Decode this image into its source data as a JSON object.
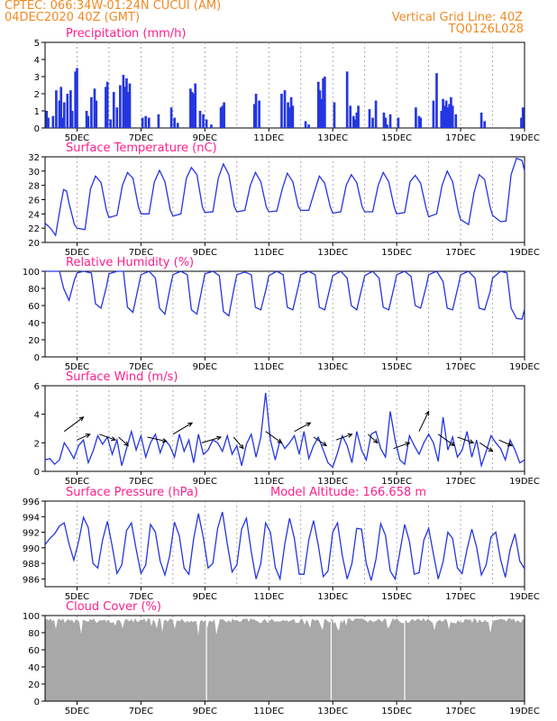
{
  "header": {
    "line1_left": "CPTEC:   066:34W-01:24N   CUCUI (AM)",
    "line2_left": "04DEC2020 40Z (GMT)",
    "grid_note": "Vertical Grid Line: 40Z",
    "code": "TQ0126L028"
  },
  "colors": {
    "header": "#f08a24",
    "title": "#ff1e8c",
    "series": "#2436e0",
    "cloud": "#a8a8a8",
    "arrow": "#000000",
    "grid": "#999999"
  },
  "x_axis": {
    "days": [
      4,
      19
    ],
    "labels": [
      "5DEC",
      "7DEC",
      "9DEC",
      "11DEC",
      "13DEC",
      "15DEC",
      "17DEC",
      "19DEC"
    ],
    "label_days": [
      5,
      7,
      9,
      11,
      13,
      15,
      17,
      19
    ]
  },
  "chart_data": [
    {
      "type": "bar",
      "title": "Precipitation (mm/h)",
      "ylim": [
        0,
        5
      ],
      "yticks": [
        0,
        1,
        2,
        3,
        4,
        5
      ],
      "x": [
        4.05,
        4.1,
        4.25,
        4.35,
        4.45,
        4.5,
        4.55,
        4.6,
        4.7,
        4.8,
        4.85,
        4.95,
        5.0,
        5.3,
        5.35,
        5.45,
        5.55,
        5.6,
        5.9,
        5.95,
        6.05,
        6.15,
        6.25,
        6.35,
        6.45,
        6.5,
        6.55,
        6.6,
        6.65,
        7.05,
        7.15,
        7.25,
        7.55,
        7.95,
        8.05,
        8.15,
        8.55,
        8.6,
        8.65,
        8.7,
        8.85,
        8.95,
        9.05,
        9.2,
        9.5,
        9.55,
        9.6,
        10.55,
        10.6,
        10.7,
        11.4,
        11.5,
        11.6,
        11.65,
        11.7,
        11.75,
        12.15,
        12.25,
        12.55,
        12.6,
        12.65,
        12.7,
        12.75,
        13.05,
        13.45,
        13.55,
        13.65,
        13.7,
        13.75,
        13.8,
        14.15,
        14.25,
        14.35,
        14.6,
        14.65,
        14.7,
        14.8,
        15.05,
        15.6,
        15.7,
        15.75,
        16.15,
        16.25,
        16.4,
        16.45,
        16.5,
        16.55,
        16.6,
        16.65,
        16.7,
        16.75,
        16.85,
        17.65,
        17.75,
        18.9,
        18.95
      ],
      "values": [
        1.0,
        0.6,
        0.7,
        2.2,
        1.6,
        2.4,
        0.6,
        1.5,
        2.0,
        2.2,
        1.0,
        3.3,
        3.5,
        1.0,
        0.7,
        1.8,
        2.3,
        1.6,
        2.4,
        2.7,
        0.5,
        2.1,
        1.2,
        2.5,
        3.1,
        2.4,
        2.9,
        2.1,
        2.6,
        0.6,
        0.7,
        0.6,
        0.8,
        1.2,
        0.6,
        0.3,
        2.3,
        2.1,
        2.0,
        2.6,
        1.0,
        0.8,
        0.5,
        0.2,
        1.2,
        1.3,
        1.5,
        1.4,
        2.0,
        1.6,
        2.0,
        2.2,
        1.5,
        1.2,
        1.8,
        1.3,
        0.4,
        0.2,
        2.7,
        2.2,
        1.7,
        2.9,
        3.0,
        1.5,
        3.3,
        1.3,
        0.7,
        0.5,
        0.9,
        1.3,
        1.1,
        0.6,
        1.6,
        0.9,
        0.6,
        0.2,
        0.8,
        0.6,
        1.2,
        0.7,
        0.6,
        1.6,
        3.2,
        1.0,
        1.7,
        1.3,
        1.6,
        1.2,
        1.4,
        1.8,
        1.3,
        0.8,
        0.9,
        0.4,
        0.6,
        1.2
      ]
    },
    {
      "type": "line",
      "title": "Surface Temperature (nC)",
      "ylim": [
        20,
        32
      ],
      "yticks": [
        20,
        22,
        24,
        26,
        28,
        30,
        32
      ],
      "x": [
        4.0,
        4.17,
        4.33,
        4.5,
        4.58,
        4.67,
        4.75,
        4.92,
        5.0,
        5.25,
        5.42,
        5.58,
        5.75,
        5.92,
        6.0,
        6.25,
        6.42,
        6.58,
        6.75,
        6.92,
        7.0,
        7.25,
        7.42,
        7.58,
        7.75,
        7.92,
        8.0,
        8.25,
        8.42,
        8.58,
        8.75,
        8.92,
        9.0,
        9.25,
        9.42,
        9.58,
        9.75,
        9.92,
        10.0,
        10.25,
        10.42,
        10.58,
        10.75,
        10.92,
        11.0,
        11.25,
        11.42,
        11.58,
        11.75,
        11.92,
        12.0,
        12.25,
        12.42,
        12.58,
        12.75,
        12.92,
        13.0,
        13.25,
        13.42,
        13.58,
        13.75,
        13.92,
        14.0,
        14.25,
        14.42,
        14.58,
        14.75,
        14.92,
        15.0,
        15.25,
        15.42,
        15.58,
        15.75,
        15.92,
        16.0,
        16.25,
        16.42,
        16.58,
        16.75,
        16.92,
        17.0,
        17.25,
        17.42,
        17.58,
        17.75,
        17.92,
        18.0,
        18.25,
        18.42,
        18.58,
        18.75,
        18.92,
        19.0
      ],
      "values": [
        22.7,
        22.0,
        21.0,
        25.5,
        27.4,
        27.2,
        25.5,
        22.5,
        22.0,
        21.8,
        27.5,
        29.3,
        28.4,
        24.5,
        23.5,
        23.8,
        28.0,
        29.8,
        29.0,
        25.0,
        24.0,
        24.0,
        28.5,
        30.1,
        28.5,
        24.5,
        23.7,
        24.0,
        29.0,
        30.5,
        29.5,
        25.0,
        24.2,
        24.3,
        29.0,
        31.0,
        29.5,
        25.0,
        24.3,
        24.5,
        28.0,
        29.8,
        28.5,
        25.0,
        24.3,
        24.4,
        27.5,
        29.7,
        28.5,
        25.0,
        24.5,
        24.5,
        27.0,
        29.3,
        28.3,
        25.0,
        24.1,
        24.3,
        28.0,
        29.5,
        28.4,
        25.0,
        24.3,
        24.3,
        28.0,
        29.8,
        28.5,
        25.0,
        24.0,
        24.2,
        28.5,
        29.4,
        28.3,
        24.8,
        23.6,
        24.0,
        28.0,
        30.0,
        28.5,
        24.5,
        23.2,
        22.5,
        27.0,
        29.5,
        28.8,
        25.0,
        23.8,
        22.9,
        23.0,
        29.5,
        31.8,
        31.5,
        30.0
      ]
    },
    {
      "type": "line",
      "title": "Relative Humidity (%)",
      "ylim": [
        0,
        100
      ],
      "yticks": [
        0,
        20,
        40,
        60,
        80,
        100
      ],
      "x": [
        4.0,
        4.25,
        4.45,
        4.58,
        4.75,
        4.92,
        5.0,
        5.2,
        5.45,
        5.58,
        5.75,
        5.92,
        6.0,
        6.25,
        6.45,
        6.58,
        6.75,
        6.92,
        7.0,
        7.25,
        7.45,
        7.58,
        7.75,
        7.92,
        8.0,
        8.25,
        8.45,
        8.58,
        8.75,
        8.92,
        9.0,
        9.25,
        9.45,
        9.58,
        9.75,
        9.92,
        10.0,
        10.25,
        10.45,
        10.58,
        10.75,
        10.92,
        11.0,
        11.25,
        11.45,
        11.58,
        11.75,
        11.92,
        12.0,
        12.25,
        12.45,
        12.58,
        12.75,
        12.92,
        13.0,
        13.25,
        13.45,
        13.58,
        13.75,
        13.92,
        14.0,
        14.25,
        14.45,
        14.58,
        14.75,
        14.92,
        15.0,
        15.25,
        15.45,
        15.58,
        15.75,
        15.92,
        16.0,
        16.25,
        16.45,
        16.58,
        16.75,
        16.92,
        17.0,
        17.25,
        17.45,
        17.58,
        17.75,
        17.92,
        18.0,
        18.25,
        18.45,
        18.58,
        18.75,
        18.92,
        19.0
      ],
      "values": [
        100,
        100,
        100,
        80,
        66,
        90,
        98,
        100,
        98,
        62,
        57,
        82,
        97,
        100,
        100,
        58,
        52,
        82,
        96,
        100,
        92,
        57,
        50,
        82,
        96,
        100,
        96,
        55,
        50,
        82,
        97,
        100,
        95,
        53,
        48,
        82,
        96,
        99,
        96,
        58,
        55,
        80,
        95,
        100,
        96,
        58,
        55,
        82,
        96,
        100,
        96,
        58,
        55,
        82,
        95,
        100,
        92,
        60,
        55,
        82,
        95,
        100,
        92,
        58,
        55,
        82,
        96,
        100,
        94,
        60,
        57,
        82,
        96,
        100,
        88,
        57,
        55,
        82,
        96,
        100,
        92,
        57,
        55,
        76,
        92,
        100,
        98,
        57,
        45,
        44,
        56
      ]
    },
    {
      "type": "line",
      "title": "Surface Wind (m/s)",
      "ylim": [
        0,
        6
      ],
      "yticks": [
        0,
        2,
        4,
        6
      ],
      "x": [
        4.0,
        4.15,
        4.3,
        4.45,
        4.6,
        4.75,
        4.9,
        5.05,
        5.2,
        5.35,
        5.5,
        5.65,
        5.8,
        5.95,
        6.1,
        6.25,
        6.4,
        6.55,
        6.7,
        6.85,
        7.0,
        7.15,
        7.3,
        7.45,
        7.6,
        7.75,
        7.9,
        8.05,
        8.2,
        8.35,
        8.5,
        8.65,
        8.8,
        8.95,
        9.1,
        9.25,
        9.4,
        9.55,
        9.7,
        9.85,
        10.0,
        10.15,
        10.3,
        10.45,
        10.6,
        10.75,
        10.9,
        11.05,
        11.2,
        11.35,
        11.5,
        11.65,
        11.8,
        11.95,
        12.1,
        12.25,
        12.4,
        12.55,
        12.7,
        12.85,
        13.0,
        13.15,
        13.3,
        13.45,
        13.6,
        13.75,
        13.9,
        14.05,
        14.2,
        14.35,
        14.5,
        14.65,
        14.8,
        14.95,
        15.1,
        15.25,
        15.4,
        15.55,
        15.7,
        15.85,
        16.0,
        16.15,
        16.3,
        16.45,
        16.6,
        16.75,
        16.9,
        17.05,
        17.2,
        17.35,
        17.5,
        17.65,
        17.8,
        17.95,
        18.1,
        18.25,
        18.4,
        18.55,
        18.7,
        18.85,
        19.0
      ],
      "values": [
        0.8,
        0.9,
        0.5,
        0.8,
        2.0,
        1.5,
        0.9,
        1.8,
        2.2,
        0.6,
        1.4,
        2.5,
        1.9,
        2.4,
        1.2,
        2.2,
        0.4,
        1.6,
        2.8,
        1.5,
        2.5,
        1.0,
        2.0,
        2.6,
        1.3,
        2.2,
        1.8,
        1.0,
        2.6,
        1.4,
        2.2,
        0.6,
        2.6,
        1.2,
        1.5,
        2.2,
        2.0,
        1.4,
        2.5,
        1.2,
        1.8,
        0.4,
        1.9,
        2.6,
        1.0,
        2.4,
        5.5,
        2.2,
        0.8,
        2.2,
        1.6,
        2.0,
        2.5,
        1.2,
        2.8,
        0.9,
        1.8,
        2.4,
        1.5,
        0.6,
        0.3,
        1.3,
        2.5,
        1.8,
        0.6,
        2.8,
        1.5,
        0.8,
        2.6,
        2.8,
        1.6,
        1.0,
        4.2,
        2.2,
        0.8,
        0.5,
        2.5,
        1.8,
        1.2,
        2.0,
        2.6,
        2.0,
        0.7,
        3.8,
        1.5,
        2.4,
        1.0,
        1.5,
        2.8,
        1.0,
        2.2,
        0.4,
        1.4,
        2.5,
        2.0,
        1.6,
        0.8,
        2.2,
        1.5,
        0.6,
        0.8
      ]
    },
    {
      "type": "line",
      "title": "Surface Pressure (hPa)",
      "annotation": "Model Altitude: 166.658 m",
      "ylim": [
        985,
        996
      ],
      "yticks": [
        986,
        988,
        990,
        992,
        994,
        996
      ],
      "x": [
        4.0,
        4.15,
        4.3,
        4.45,
        4.6,
        4.75,
        4.9,
        5.05,
        5.2,
        5.35,
        5.5,
        5.65,
        5.8,
        5.95,
        6.1,
        6.25,
        6.4,
        6.55,
        6.7,
        6.85,
        7.0,
        7.15,
        7.3,
        7.45,
        7.6,
        7.75,
        7.9,
        8.05,
        8.2,
        8.35,
        8.5,
        8.65,
        8.8,
        8.95,
        9.1,
        9.25,
        9.4,
        9.55,
        9.7,
        9.85,
        10.0,
        10.15,
        10.3,
        10.45,
        10.6,
        10.75,
        10.9,
        11.05,
        11.2,
        11.35,
        11.5,
        11.65,
        11.8,
        11.95,
        12.1,
        12.25,
        12.4,
        12.55,
        12.7,
        12.85,
        13.0,
        13.15,
        13.3,
        13.45,
        13.6,
        13.75,
        13.9,
        14.05,
        14.2,
        14.35,
        14.5,
        14.65,
        14.8,
        14.95,
        15.1,
        15.25,
        15.4,
        15.55,
        15.7,
        15.85,
        16.0,
        16.15,
        16.3,
        16.45,
        16.6,
        16.75,
        16.9,
        17.05,
        17.2,
        17.35,
        17.5,
        17.65,
        17.8,
        17.95,
        18.1,
        18.25,
        18.4,
        18.55,
        18.7,
        18.85,
        19.0
      ],
      "values": [
        990.4,
        991.2,
        991.8,
        992.8,
        993.2,
        990.5,
        988.4,
        990.8,
        993.9,
        992.6,
        988.0,
        987.4,
        991.0,
        993.4,
        990.2,
        986.7,
        987.8,
        992.2,
        993.2,
        989.8,
        986.7,
        987.8,
        993.0,
        992.0,
        988.3,
        986.5,
        989.0,
        993.3,
        991.5,
        987.4,
        986.6,
        991.2,
        994.4,
        991.3,
        987.4,
        988.0,
        992.5,
        994.6,
        990.5,
        986.9,
        987.8,
        992.4,
        993.8,
        989.5,
        986.0,
        988.0,
        993.2,
        992.0,
        987.5,
        986.0,
        990.5,
        993.8,
        991.2,
        986.6,
        986.6,
        991.0,
        993.5,
        990.3,
        986.3,
        987.0,
        992.0,
        993.2,
        989.0,
        986.0,
        988.0,
        992.5,
        992.4,
        988.0,
        985.8,
        988.5,
        993.1,
        991.6,
        987.0,
        986.0,
        989.5,
        993.0,
        990.8,
        986.6,
        986.8,
        991.0,
        992.5,
        989.2,
        986.0,
        988.2,
        992.0,
        991.2,
        987.4,
        986.7,
        989.8,
        992.4,
        990.1,
        986.5,
        987.8,
        991.4,
        992.0,
        988.5,
        986.2,
        989.8,
        991.8,
        988.3,
        987.3
      ]
    },
    {
      "type": "bar",
      "title": "Cloud Cover (%)",
      "ylim": [
        0,
        100
      ],
      "yticks": [
        0,
        20,
        40,
        60,
        80,
        100
      ]
    }
  ]
}
